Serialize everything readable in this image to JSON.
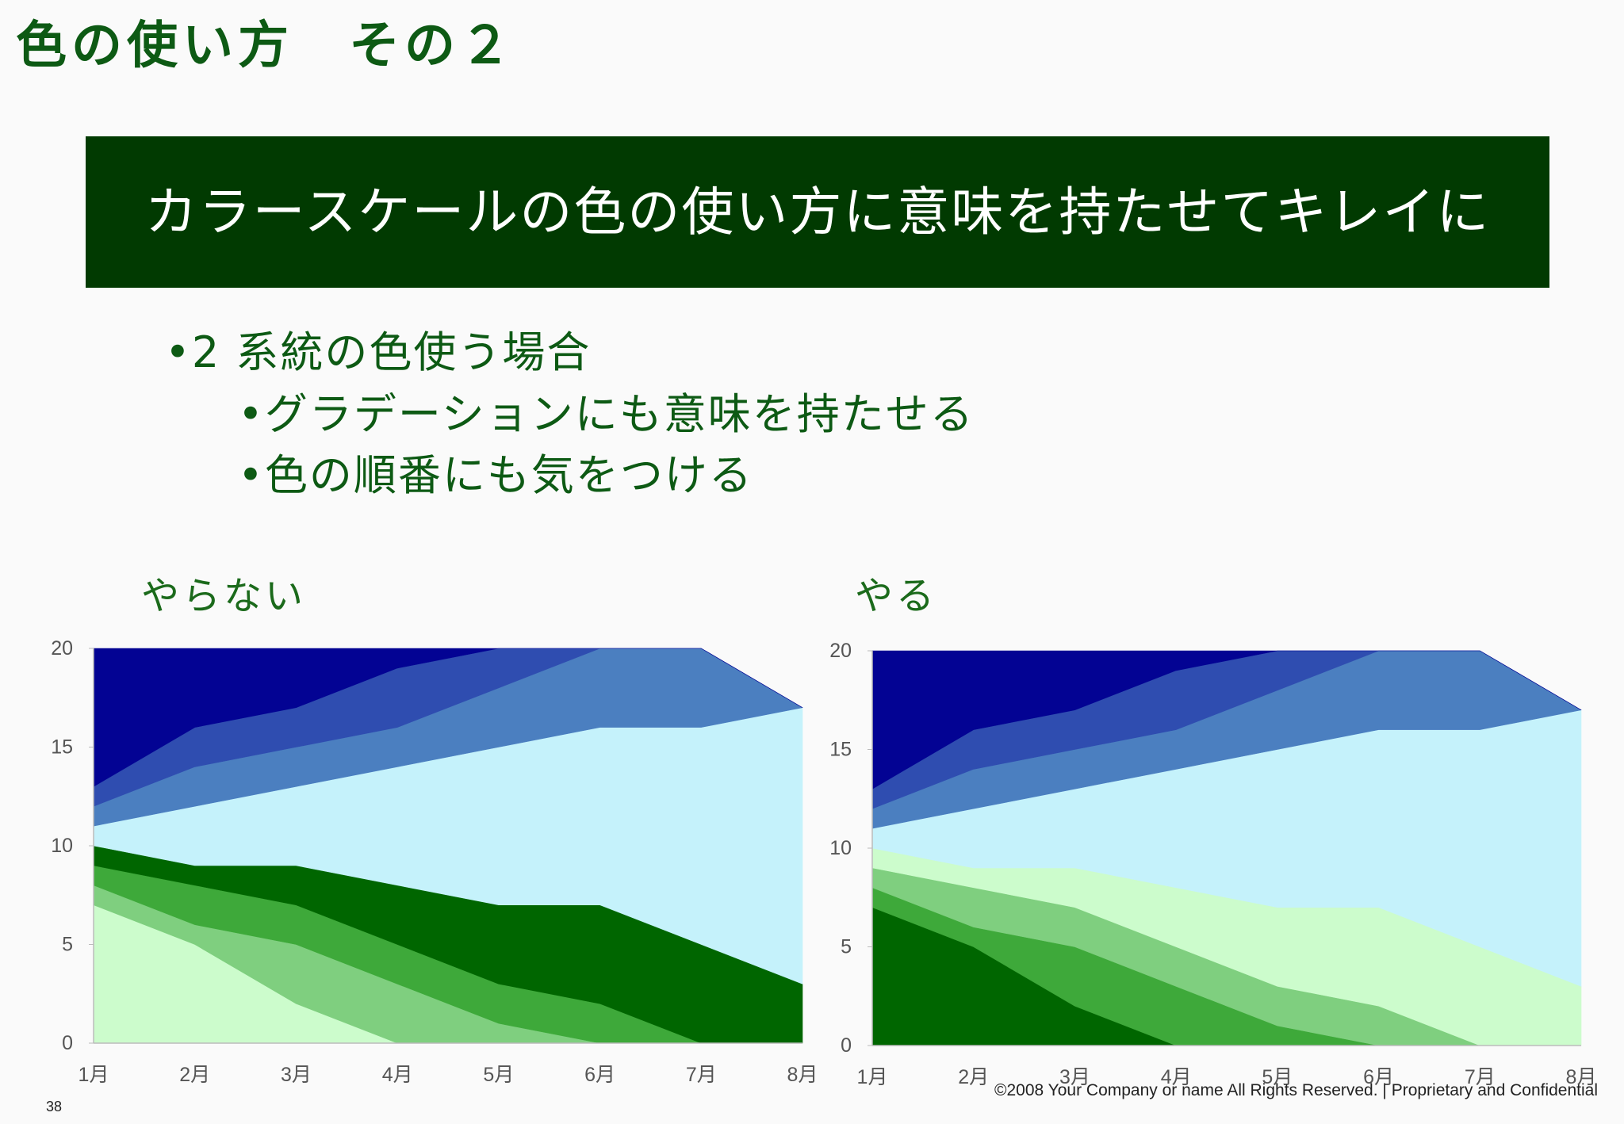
{
  "page": {
    "title": "色の使い方　その２",
    "banner": "カラースケールの色の使い方に意味を持たせてキレイに",
    "bullets": [
      "•2 系統の色使う場合",
      "•グラデーションにも意味を持たせる",
      "•色の順番にも気をつける"
    ],
    "label_left": "やらない",
    "label_right": "やる",
    "footer": "©2008 Your Company or name All Rights Reserved. | Proprietary and Confidential",
    "page_number": "38"
  },
  "chart_data": [
    {
      "type": "area",
      "stacked": true,
      "x": [
        "1月",
        "2月",
        "3月",
        "4月",
        "5月",
        "6月",
        "7月",
        "8月"
      ],
      "ylim": [
        0,
        20
      ],
      "yticks": [
        "0",
        "5",
        "10",
        "15",
        "20"
      ],
      "series": [
        {
          "values": [
            7,
            5,
            2,
            0,
            0,
            0,
            0,
            0
          ],
          "color": "#ccfccc"
        },
        {
          "values": [
            1,
            1,
            3,
            3,
            1,
            0,
            0,
            0
          ],
          "color": "#7fcf7f"
        },
        {
          "values": [
            1,
            2,
            2,
            2,
            2,
            2,
            0,
            0
          ],
          "color": "#3ea93a"
        },
        {
          "values": [
            1,
            1,
            2,
            3,
            4,
            5,
            5,
            3
          ],
          "color": "#006600"
        },
        {
          "values": [
            1,
            3,
            4,
            6,
            8,
            9,
            11,
            14
          ],
          "color": "#c5f2fb"
        },
        {
          "values": [
            1,
            2,
            2,
            2,
            3,
            4,
            4,
            0
          ],
          "color": "#4b7fc0"
        },
        {
          "values": [
            1,
            2,
            2,
            3,
            2,
            0,
            0,
            0
          ],
          "color": "#2f4db0"
        },
        {
          "values": [
            7,
            4,
            3,
            1,
            0,
            0,
            0,
            0
          ],
          "color": "#030393"
        }
      ]
    },
    {
      "type": "area",
      "stacked": true,
      "x": [
        "1月",
        "2月",
        "3月",
        "4月",
        "5月",
        "6月",
        "7月",
        "8月"
      ],
      "ylim": [
        0,
        20
      ],
      "yticks": [
        "0",
        "5",
        "10",
        "15",
        "20"
      ],
      "series": [
        {
          "values": [
            7,
            5,
            2,
            0,
            0,
            0,
            0,
            0
          ],
          "color": "#006600"
        },
        {
          "values": [
            1,
            1,
            3,
            3,
            1,
            0,
            0,
            0
          ],
          "color": "#3ea93a"
        },
        {
          "values": [
            1,
            2,
            2,
            2,
            2,
            2,
            0,
            0
          ],
          "color": "#7fcf7f"
        },
        {
          "values": [
            1,
            1,
            2,
            3,
            4,
            5,
            5,
            3
          ],
          "color": "#ccfccc"
        },
        {
          "values": [
            1,
            3,
            4,
            6,
            8,
            9,
            11,
            14
          ],
          "color": "#c5f2fb"
        },
        {
          "values": [
            1,
            2,
            2,
            2,
            3,
            4,
            4,
            0
          ],
          "color": "#4b7fc0"
        },
        {
          "values": [
            1,
            2,
            2,
            3,
            2,
            0,
            0,
            0
          ],
          "color": "#2f4db0"
        },
        {
          "values": [
            7,
            4,
            3,
            1,
            0,
            0,
            0,
            0
          ],
          "color": "#030393"
        }
      ]
    }
  ]
}
